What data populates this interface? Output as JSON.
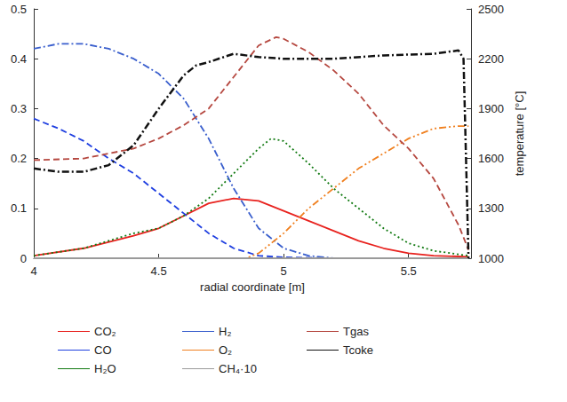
{
  "chart_data": {
    "type": "line",
    "x_label": "radial coordinate [m]",
    "y2_label": "temperature [°C]",
    "xlim": [
      4,
      5.75
    ],
    "xticks": [
      4,
      4.5,
      5,
      5.5
    ],
    "ylim": [
      0,
      0.5
    ],
    "yticks": [
      0,
      0.1,
      0.2,
      0.3,
      0.4,
      0.5
    ],
    "y2lim": [
      1000,
      2500
    ],
    "y2ticks": [
      1000,
      1300,
      1600,
      1900,
      2200,
      2500
    ],
    "grid": false,
    "legend": "bottom",
    "series": [
      {
        "name": "CO₂",
        "color": "#e8221e",
        "line_style": "solid",
        "x": [
          4,
          4.2,
          4.4,
          4.5,
          4.6,
          4.7,
          4.8,
          4.9,
          5.0,
          5.1,
          5.2,
          5.3,
          5.4,
          5.5,
          5.6,
          5.74
        ],
        "values": [
          0.005,
          0.02,
          0.045,
          0.06,
          0.085,
          0.11,
          0.12,
          0.115,
          0.095,
          0.075,
          0.055,
          0.035,
          0.02,
          0.01,
          0.005,
          0.003
        ]
      },
      {
        "name": "CO",
        "color": "#1f3fe0",
        "line_style": "dashed",
        "x": [
          4,
          4.1,
          4.2,
          4.3,
          4.4,
          4.5,
          4.6,
          4.7,
          4.8,
          4.9,
          5.0,
          5.2,
          5.74
        ],
        "values": [
          0.28,
          0.26,
          0.235,
          0.2,
          0.17,
          0.13,
          0.09,
          0.05,
          0.02,
          0.005,
          0.002,
          0,
          0
        ]
      },
      {
        "name": "H₂O",
        "color": "#127a12",
        "line_style": "dotted",
        "x": [
          4,
          4.2,
          4.4,
          4.5,
          4.6,
          4.7,
          4.8,
          4.9,
          4.95,
          5.0,
          5.1,
          5.2,
          5.3,
          5.4,
          5.5,
          5.6,
          5.74
        ],
        "values": [
          0.005,
          0.02,
          0.05,
          0.06,
          0.085,
          0.12,
          0.17,
          0.22,
          0.24,
          0.235,
          0.19,
          0.14,
          0.1,
          0.06,
          0.03,
          0.015,
          0.005
        ]
      },
      {
        "name": "H₂",
        "color": "#3a5fcd",
        "line_style": "dashdot",
        "x": [
          4,
          4.1,
          4.2,
          4.3,
          4.4,
          4.5,
          4.6,
          4.7,
          4.8,
          4.9,
          5.0,
          5.1,
          5.2,
          5.74
        ],
        "values": [
          0.42,
          0.43,
          0.43,
          0.42,
          0.4,
          0.37,
          0.32,
          0.24,
          0.14,
          0.06,
          0.02,
          0.005,
          0,
          0
        ]
      },
      {
        "name": "O₂",
        "color": "#f08020",
        "line_style": "dashdotdot",
        "x": [
          4,
          4.85,
          4.9,
          5.0,
          5.1,
          5.2,
          5.3,
          5.4,
          5.5,
          5.6,
          5.7,
          5.74
        ],
        "values": [
          0,
          0,
          0.01,
          0.05,
          0.1,
          0.14,
          0.18,
          0.21,
          0.24,
          0.26,
          0.265,
          0.265
        ]
      },
      {
        "name": "CH₄·10",
        "color": "#9a9a9a",
        "line_style": "solid",
        "x": [
          4,
          5.74
        ],
        "values": [
          0,
          0
        ]
      },
      {
        "name": "Tgas",
        "color": "#b5473f",
        "line_style": "dashed",
        "axis": "y2",
        "x": [
          4,
          4.2,
          4.4,
          4.5,
          4.6,
          4.7,
          4.8,
          4.9,
          4.97,
          5.0,
          5.1,
          5.2,
          5.3,
          5.4,
          5.5,
          5.6,
          5.7,
          5.74
        ],
        "values": [
          1590,
          1600,
          1660,
          1720,
          1800,
          1900,
          2090,
          2280,
          2330,
          2320,
          2240,
          2130,
          1990,
          1800,
          1660,
          1480,
          1200,
          1050
        ]
      },
      {
        "name": "Tcoke",
        "color": "#111111",
        "line_style": "dashdot",
        "axis": "y2",
        "x": [
          4,
          4.1,
          4.2,
          4.3,
          4.4,
          4.5,
          4.6,
          4.65,
          4.7,
          4.8,
          4.9,
          5.0,
          5.2,
          5.4,
          5.6,
          5.7,
          5.72,
          5.74
        ],
        "values": [
          1540,
          1520,
          1520,
          1560,
          1680,
          1900,
          2100,
          2160,
          2180,
          2230,
          2210,
          2200,
          2200,
          2220,
          2230,
          2250,
          2200,
          1000
        ]
      }
    ]
  }
}
